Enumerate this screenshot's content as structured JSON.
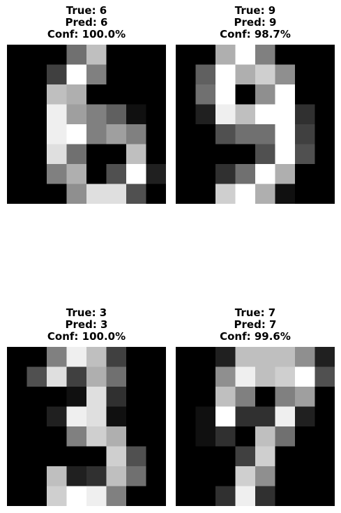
{
  "colors": {
    "background": "#ffffff",
    "text": "#000000",
    "colormap": "gray"
  },
  "panels": [
    {
      "true_label": "True: 6",
      "pred_label": "Pred: 6",
      "conf_label": "Conf: 100.0%",
      "pixels": [
        [
          0,
          0,
          0,
          7,
          12,
          0,
          0,
          0
        ],
        [
          0,
          0,
          4,
          16,
          8,
          0,
          0,
          0
        ],
        [
          0,
          0,
          12,
          11,
          0,
          0,
          0,
          0
        ],
        [
          0,
          0,
          15,
          10,
          8,
          6,
          1,
          0
        ],
        [
          0,
          0,
          15,
          16,
          8,
          10,
          8,
          0
        ],
        [
          0,
          0,
          14,
          7,
          0,
          0,
          12,
          0
        ],
        [
          0,
          0,
          8,
          11,
          0,
          5,
          16,
          2
        ],
        [
          0,
          0,
          0,
          9,
          14,
          14,
          5,
          0
        ]
      ]
    },
    {
      "true_label": "True: 9",
      "pred_label": "Pred: 9",
      "conf_label": "Conf: 98.7%",
      "pixels": [
        [
          0,
          0,
          11,
          16,
          8,
          0,
          0,
          0
        ],
        [
          0,
          6,
          16,
          11,
          13,
          9,
          0,
          0
        ],
        [
          0,
          7,
          16,
          0,
          9,
          16,
          0,
          0
        ],
        [
          0,
          2,
          15,
          12,
          16,
          16,
          3,
          0
        ],
        [
          0,
          0,
          5,
          7,
          7,
          16,
          4,
          0
        ],
        [
          0,
          0,
          0,
          0,
          5,
          16,
          5,
          0
        ],
        [
          0,
          0,
          3,
          7,
          16,
          11,
          0,
          0
        ],
        [
          0,
          0,
          13,
          16,
          11,
          1,
          0,
          0
        ]
      ]
    },
    {
      "true_label": "True: 3",
      "pred_label": "Pred: 3",
      "conf_label": "Conf: 100.0%",
      "pixels": [
        [
          0,
          0,
          8,
          15,
          12,
          4,
          0,
          0
        ],
        [
          0,
          5,
          14,
          4,
          11,
          7,
          0,
          0
        ],
        [
          0,
          0,
          0,
          1,
          14,
          3,
          0,
          0
        ],
        [
          0,
          0,
          2,
          15,
          14,
          1,
          0,
          0
        ],
        [
          0,
          0,
          0,
          8,
          13,
          11,
          0,
          0
        ],
        [
          0,
          0,
          0,
          0,
          0,
          13,
          5,
          0
        ],
        [
          0,
          0,
          12,
          2,
          3,
          12,
          7,
          0
        ],
        [
          0,
          0,
          13,
          16,
          15,
          8,
          0,
          0
        ]
      ]
    },
    {
      "true_label": "True: 7",
      "pred_label": "Pred: 7",
      "conf_label": "Conf: 99.6%",
      "pixels": [
        [
          0,
          0,
          2,
          12,
          12,
          12,
          9,
          2
        ],
        [
          0,
          0,
          9,
          15,
          12,
          13,
          16,
          5
        ],
        [
          0,
          0,
          12,
          8,
          0,
          8,
          10,
          0
        ],
        [
          0,
          1,
          16,
          3,
          3,
          15,
          2,
          0
        ],
        [
          0,
          1,
          3,
          0,
          12,
          7,
          0,
          0
        ],
        [
          0,
          0,
          0,
          4,
          13,
          0,
          0,
          0
        ],
        [
          0,
          0,
          0,
          13,
          9,
          0,
          0,
          0
        ],
        [
          0,
          0,
          3,
          15,
          3,
          0,
          0,
          0
        ]
      ]
    }
  ]
}
